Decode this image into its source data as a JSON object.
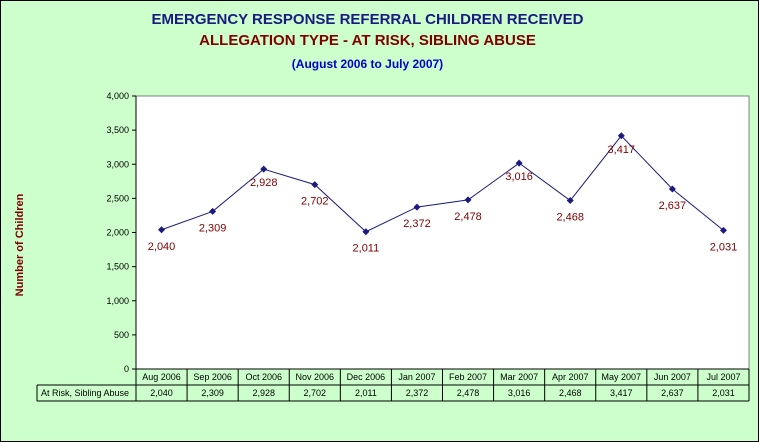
{
  "titles": {
    "main": "EMERGENCY RESPONSE REFERRAL CHILDREN RECEIVED",
    "sub": "ALLEGATION TYPE - AT RISK, SIBLING ABUSE",
    "period": "(August 2006 to July 2007)"
  },
  "colors": {
    "background": "#ccffcc",
    "plot_area": "#ffffff",
    "line": "#1a1a80",
    "marker": "#1a1a80",
    "data_label": "#800000",
    "title": "#1a1a80",
    "subtitle": "#800000",
    "period": "#0000cc"
  },
  "chart_data": {
    "type": "line",
    "title": "EMERGENCY RESPONSE REFERRAL CHILDREN RECEIVED",
    "subtitle": "ALLEGATION TYPE - AT RISK, SIBLING ABUSE",
    "xlabel": "",
    "ylabel": "Number of Children",
    "ylim": [
      0,
      4000
    ],
    "yticks": [
      0,
      500,
      1000,
      1500,
      2000,
      2500,
      3000,
      3500,
      4000
    ],
    "ytick_labels": [
      "0",
      "500",
      "1,000",
      "1,500",
      "2,000",
      "2,500",
      "3,000",
      "3,500",
      "4,000"
    ],
    "grid": false,
    "categories": [
      "Aug 2006",
      "Sep 2006",
      "Oct 2006",
      "Nov 2006",
      "Dec 2006",
      "Jan 2007",
      "Feb 2007",
      "Mar 2007",
      "Apr 2007",
      "May 2007",
      "Jun 2007",
      "Jul 2007"
    ],
    "series": [
      {
        "name": "At Risk, Sibling Abuse",
        "values": [
          2040,
          2309,
          2928,
          2702,
          2011,
          2372,
          2478,
          3016,
          2468,
          3417,
          2637,
          2031
        ],
        "labels": [
          "2,040",
          "2,309",
          "2,928",
          "2,702",
          "2,011",
          "2,372",
          "2,478",
          "3,016",
          "2,468",
          "3,417",
          "2,637",
          "2,031"
        ]
      }
    ],
    "data_table": true
  }
}
